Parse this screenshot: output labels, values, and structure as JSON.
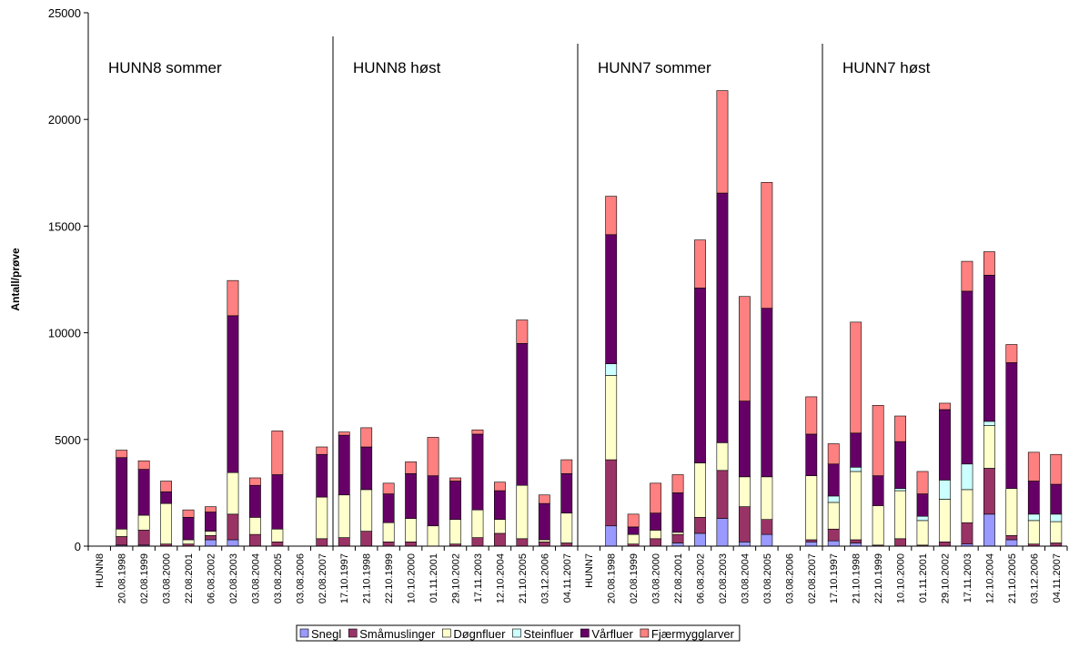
{
  "chart_data": {
    "type": "bar",
    "stacked": true,
    "title": "",
    "xlabel": "",
    "ylabel": "Antall/prøve",
    "ylim": [
      0,
      25000
    ],
    "yticks": [
      0,
      5000,
      10000,
      15000,
      20000,
      25000
    ],
    "grid": false,
    "legend_position": "bottom",
    "categories": [
      "HUNN8",
      "20.08.1998",
      "02.08.1999",
      "03.08.2000",
      "22.08.2001",
      "06.08.2002",
      "02.08.2003",
      "03.08.2004",
      "03.08.2005",
      "03.08.2006",
      "02.08.2007",
      "17.10.1997",
      "21.10.1998",
      "22.10.1999",
      "10.10.2000",
      "01.11.2001",
      "29.10.2002",
      "17.11.2003",
      "12.10.2004",
      "21.10.2005",
      "03.12.2006",
      "04.11.2007",
      "HUNN7",
      "20.08.1998",
      "02.08.1999",
      "03.08.2000",
      "22.08.2001",
      "06.08.2002",
      "02.08.2003",
      "03.08.2004",
      "03.08.2005",
      "03.08.2006",
      "02.08.2007",
      "17.10.1997",
      "21.10.1998",
      "22.10.1999",
      "10.10.2000",
      "01.11.2001",
      "29.10.2002",
      "17.11.2003",
      "12.10.2004",
      "21.10.2005",
      "03.12.2006",
      "04.11.2007"
    ],
    "series": [
      {
        "name": "Snegl",
        "color": "#9999ff",
        "values": [
          0,
          50,
          50,
          0,
          0,
          300,
          300,
          0,
          0,
          0,
          0,
          0,
          0,
          0,
          0,
          0,
          0,
          0,
          0,
          0,
          0,
          0,
          0,
          950,
          0,
          0,
          150,
          600,
          1300,
          200,
          550,
          0,
          200,
          250,
          150,
          0,
          0,
          0,
          0,
          100,
          1500,
          300,
          0,
          0
        ]
      },
      {
        "name": "Småmuslinger",
        "color": "#993366",
        "values": [
          0,
          400,
          700,
          100,
          100,
          200,
          1200,
          550,
          200,
          0,
          350,
          400,
          700,
          200,
          200,
          0,
          100,
          400,
          600,
          350,
          200,
          150,
          0,
          3100,
          100,
          350,
          400,
          750,
          2250,
          1650,
          700,
          0,
          100,
          550,
          150,
          50,
          350,
          50,
          200,
          1000,
          2150,
          200,
          100,
          150
        ]
      },
      {
        "name": "Døgnfluer",
        "color": "#ffffcc",
        "values": [
          0,
          350,
          700,
          1900,
          200,
          200,
          1950,
          800,
          600,
          0,
          1950,
          2000,
          1950,
          900,
          1100,
          950,
          1150,
          1300,
          650,
          2500,
          100,
          1400,
          0,
          3950,
          450,
          400,
          100,
          2550,
          1300,
          1400,
          2000,
          0,
          3000,
          1250,
          3200,
          1850,
          2250,
          1150,
          2000,
          1550,
          2000,
          2200,
          1100,
          1000
        ]
      },
      {
        "name": "Steinfluer",
        "color": "#ccffff",
        "values": [
          0,
          0,
          0,
          0,
          0,
          0,
          0,
          0,
          0,
          0,
          0,
          0,
          0,
          0,
          0,
          0,
          0,
          0,
          0,
          0,
          0,
          0,
          0,
          550,
          0,
          0,
          0,
          0,
          0,
          0,
          0,
          0,
          0,
          300,
          200,
          0,
          100,
          200,
          900,
          1200,
          200,
          0,
          300,
          350
        ]
      },
      {
        "name": "Vårfluer",
        "color": "#660066",
        "values": [
          0,
          3350,
          2150,
          550,
          1050,
          900,
          7350,
          1500,
          2550,
          0,
          2000,
          2800,
          2000,
          1350,
          2100,
          2350,
          1800,
          3550,
          1350,
          6650,
          1700,
          1850,
          0,
          6050,
          350,
          800,
          1850,
          8200,
          11700,
          3550,
          7900,
          0,
          1950,
          1500,
          1600,
          1400,
          2200,
          1050,
          3300,
          8100,
          6850,
          5900,
          1550,
          1400
        ]
      },
      {
        "name": "Fjærmygglarver",
        "color": "#ff8080",
        "values": [
          0,
          350,
          400,
          500,
          350,
          250,
          1650,
          350,
          2050,
          0,
          350,
          150,
          900,
          500,
          550,
          1800,
          150,
          200,
          400,
          1100,
          400,
          650,
          0,
          1800,
          600,
          1400,
          850,
          2250,
          4800,
          4900,
          5900,
          0,
          1750,
          950,
          5200,
          3300,
          1200,
          1050,
          300,
          1400,
          1100,
          850,
          1350,
          1400
        ]
      }
    ],
    "annotations": [
      "HUNN8 sommer",
      "HUNN8 høst",
      "HUNN7 sommer",
      "HUNN7 høst"
    ],
    "panel_dividers_after_category": [
      "02.08.2007",
      "04.11.2007",
      "02.08.2007"
    ]
  }
}
